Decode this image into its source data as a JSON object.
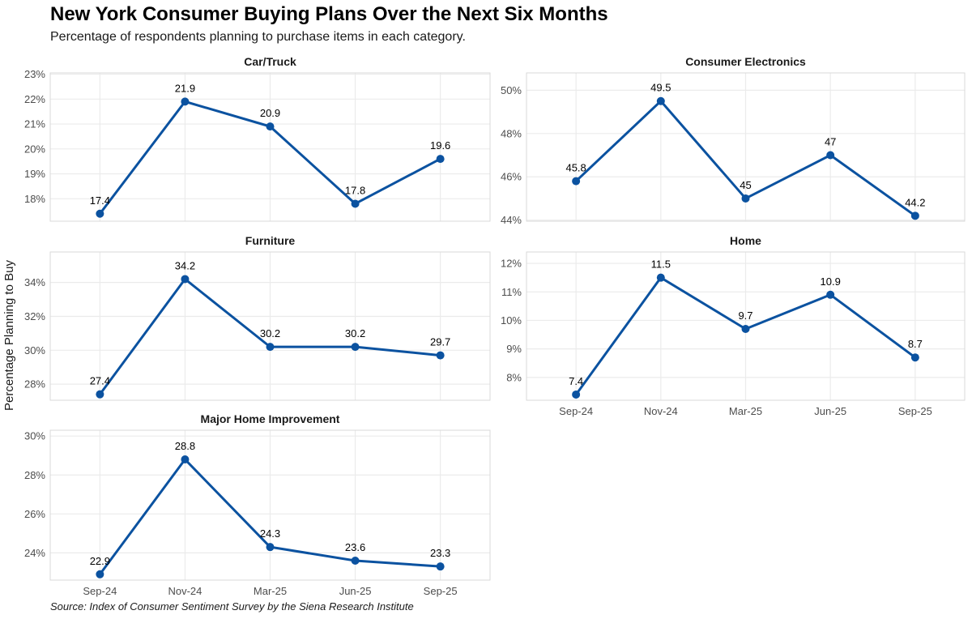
{
  "title": "New York Consumer Buying Plans Over the Next Six Months",
  "subtitle": "Percentage of respondents planning to purchase items in each category.",
  "ylabel": "Percentage Planning to Buy",
  "caption": "Source: Index of Consumer Sentiment Survey by the Siena Research Institute",
  "colors": {
    "line": "#0B52A0",
    "grid": "#EBEBEB",
    "frame": "#D9D9D9",
    "axis_text": "#4D4D4D"
  },
  "chart_data": [
    {
      "type": "line",
      "title": "Car/Truck",
      "categories": [
        "Sep-24",
        "Nov-24",
        "Mar-25",
        "Jun-25",
        "Sep-25"
      ],
      "values": [
        17.4,
        21.9,
        20.9,
        17.8,
        19.6
      ],
      "value_labels": [
        "17.4",
        "21.9",
        "20.9",
        "17.8",
        "19.6"
      ],
      "ylim": [
        17.1,
        23.05
      ],
      "yticks": [
        18,
        19,
        20,
        21,
        22,
        23
      ],
      "ytick_labels": [
        "18%",
        "19%",
        "20%",
        "21%",
        "22%",
        "23%"
      ],
      "show_x_labels": false
    },
    {
      "type": "line",
      "title": "Consumer Electronics",
      "categories": [
        "Sep-24",
        "Nov-24",
        "Mar-25",
        "Jun-25",
        "Sep-25"
      ],
      "values": [
        45.8,
        49.5,
        45,
        47,
        44.2
      ],
      "value_labels": [
        "45.8",
        "49.5",
        "45",
        "47",
        "44.2"
      ],
      "ylim": [
        43.95,
        50.8
      ],
      "yticks": [
        44,
        46,
        48,
        50
      ],
      "ytick_labels": [
        "44%",
        "46%",
        "48%",
        "50%"
      ],
      "show_x_labels": false
    },
    {
      "type": "line",
      "title": "Furniture",
      "categories": [
        "Sep-24",
        "Nov-24",
        "Mar-25",
        "Jun-25",
        "Sep-25"
      ],
      "values": [
        27.4,
        34.2,
        30.2,
        30.2,
        29.7
      ],
      "value_labels": [
        "27.4",
        "34.2",
        "30.2",
        "30.2",
        "29.7"
      ],
      "ylim": [
        27.05,
        35.8
      ],
      "yticks": [
        28,
        30,
        32,
        34
      ],
      "ytick_labels": [
        "28%",
        "30%",
        "32%",
        "34%"
      ],
      "show_x_labels": false
    },
    {
      "type": "line",
      "title": "Home",
      "categories": [
        "Sep-24",
        "Nov-24",
        "Mar-25",
        "Jun-25",
        "Sep-25"
      ],
      "values": [
        7.4,
        11.5,
        9.7,
        10.9,
        8.7
      ],
      "value_labels": [
        "7.4",
        "11.5",
        "9.7",
        "10.9",
        "8.7"
      ],
      "ylim": [
        7.2,
        12.4
      ],
      "yticks": [
        8,
        9,
        10,
        11,
        12
      ],
      "ytick_labels": [
        "8%",
        "9%",
        "10%",
        "11%",
        "12%"
      ],
      "show_x_labels": true
    },
    {
      "type": "line",
      "title": "Major Home Improvement",
      "categories": [
        "Sep-24",
        "Nov-24",
        "Mar-25",
        "Jun-25",
        "Sep-25"
      ],
      "values": [
        22.9,
        28.8,
        24.3,
        23.6,
        23.3
      ],
      "value_labels": [
        "22.9",
        "28.8",
        "24.3",
        "23.6",
        "23.3"
      ],
      "ylim": [
        22.6,
        30.3
      ],
      "yticks": [
        24,
        26,
        28,
        30
      ],
      "ytick_labels": [
        "24%",
        "26%",
        "28%",
        "30%"
      ],
      "show_x_labels": true
    }
  ]
}
